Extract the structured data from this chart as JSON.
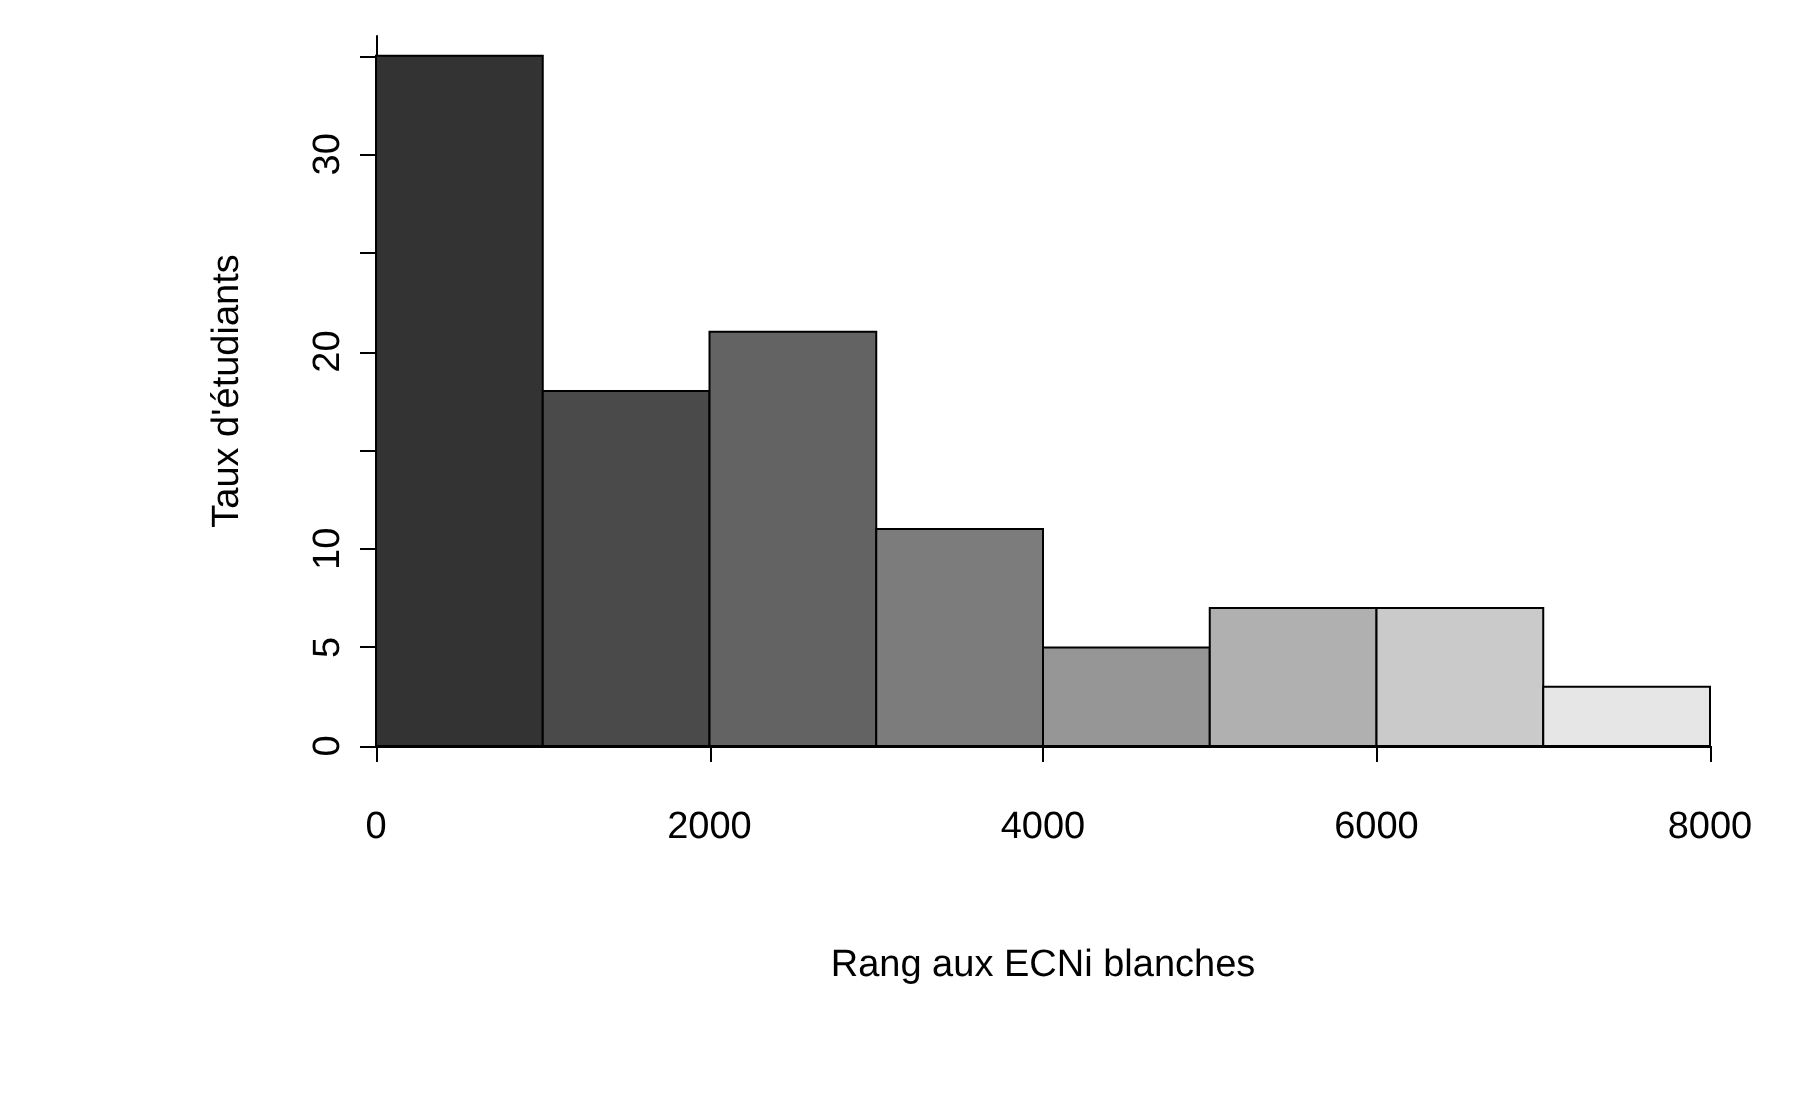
{
  "chart_data": {
    "type": "histogram",
    "xlabel": "Rang aux ECNi blanches",
    "ylabel": "Taux d'étudiants",
    "bins": [
      0,
      1000,
      2000,
      3000,
      4000,
      5000,
      6000,
      7000,
      8000
    ],
    "values": [
      35,
      18,
      21,
      11,
      5,
      7,
      7,
      3
    ],
    "colors": [
      "#333333",
      "#4a4a4a",
      "#636363",
      "#7c7c7c",
      "#969696",
      "#b0b0b0",
      "#cacaca",
      "#e6e6e6"
    ],
    "xlim": [
      0,
      8000
    ],
    "xticks": [
      0,
      2000,
      4000,
      6000,
      8000
    ],
    "ylim": [
      0,
      36
    ],
    "yticks": [
      0,
      5,
      10,
      {
        "value": 15,
        "label": null
      },
      20,
      {
        "value": 25,
        "label": null
      },
      30,
      {
        "value": 35,
        "label": null
      }
    ],
    "grid": false
  }
}
